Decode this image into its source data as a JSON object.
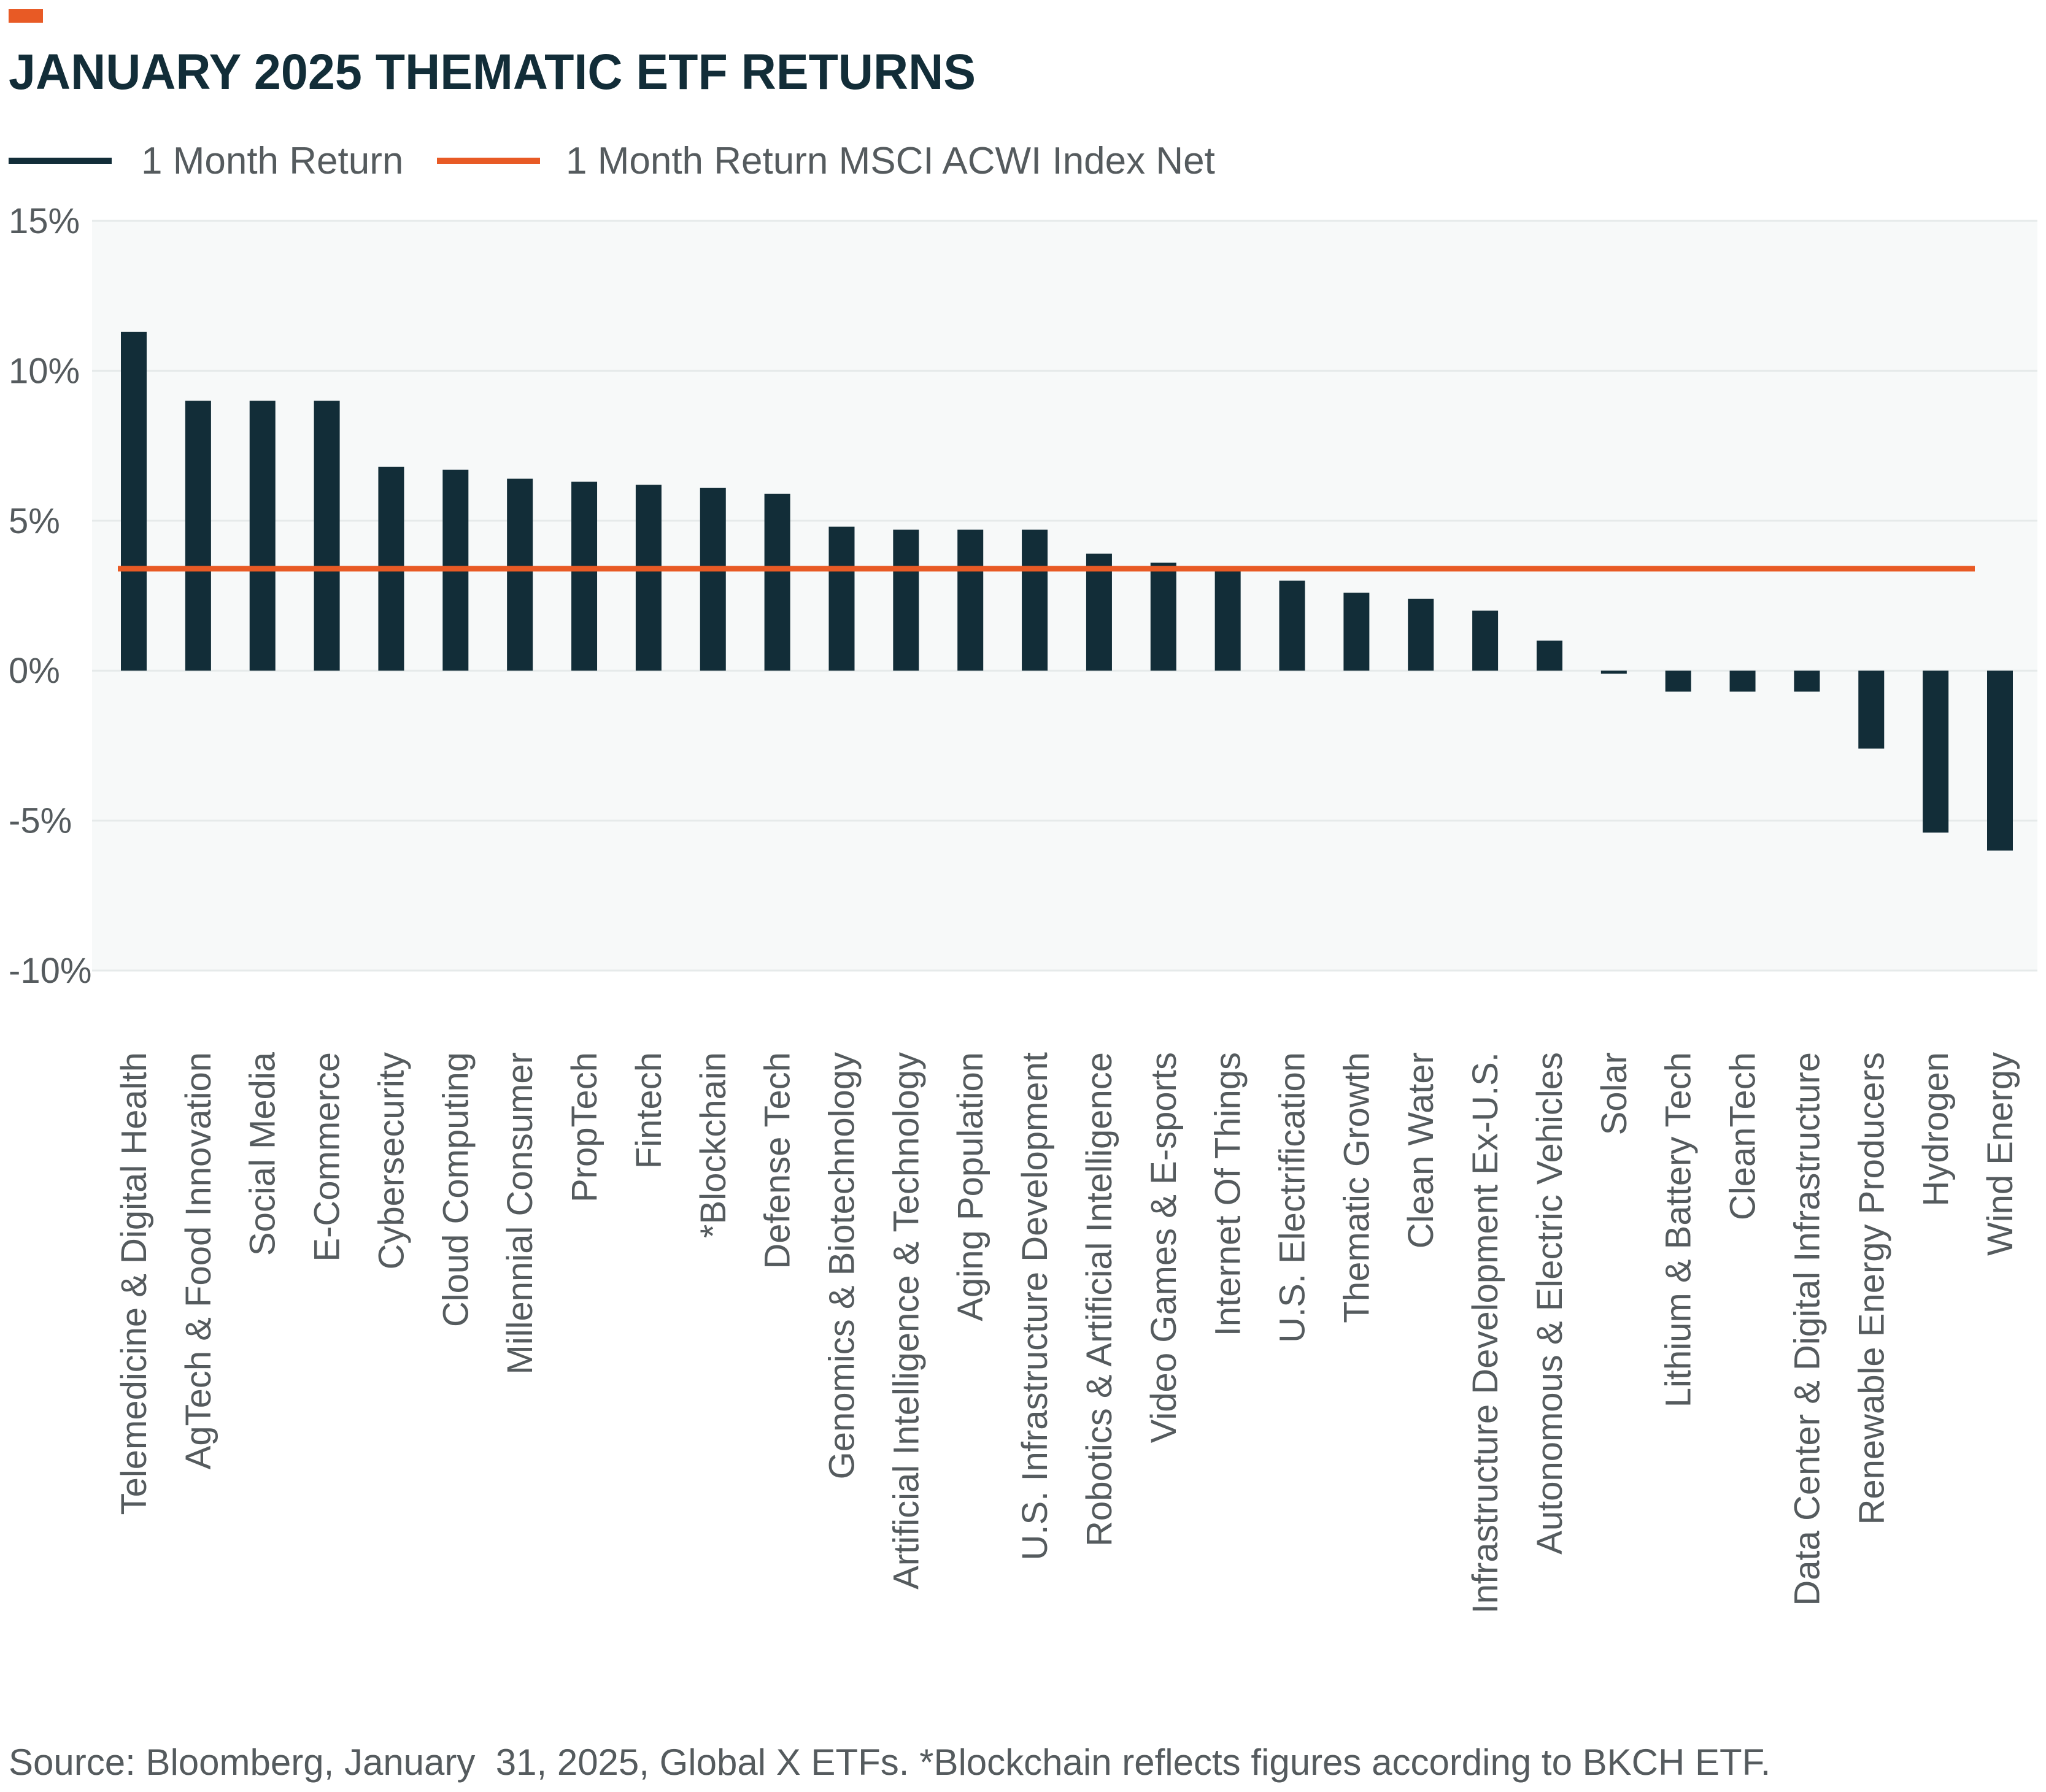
{
  "colors": {
    "accent": "#E85A25",
    "bar": "#122D38",
    "benchmark": "#E85A25",
    "title": "#122D38",
    "text": "#555B5E",
    "plot_background": "#F7F9F9",
    "gridline": "#E6EAEA"
  },
  "chart_data": {
    "type": "bar",
    "title": "JANUARY 2025 THEMATIC ETF RETURNS",
    "xlabel": "",
    "ylabel": "",
    "ylim": [
      -10,
      15
    ],
    "yticks": [
      15,
      10,
      5,
      0,
      -5,
      -10
    ],
    "ytick_labels": [
      "15%",
      "10%",
      "5%",
      "0%",
      "-5%",
      "-10%"
    ],
    "grid": true,
    "legend_position": "top-left",
    "legend": [
      "1 Month Return",
      "1 Month Return MSCI ACWI Index Net"
    ],
    "categories": [
      "Telemedicine & Digital Health",
      "AgTech & Food Innovation",
      "Social Media",
      "E-Commerce",
      "Cybersecurity",
      "Cloud Computing",
      "Millennial Consumer",
      "PropTech",
      "Fintech",
      "*Blockchain",
      "Defense Tech",
      "Genomics & Biotechnology",
      "Artificial Intelligence & Technology",
      "Aging Population",
      "U.S. Infrastructure Development",
      "Robotics & Artificial Intelligence",
      "Video Games & E-sports",
      "Internet Of Things",
      "U.S. Electrification",
      "Thematic Growth",
      "Clean Water",
      "Infrastructure Development Ex-U.S.",
      "Autonomous & Electric Vehicles",
      "Solar",
      "Lithium & Battery Tech",
      "CleanTech",
      "Data Center & Digital Infrastructure",
      "Renewable Energy Producers",
      "Hydrogen",
      "Wind Energy"
    ],
    "series": [
      {
        "name": "1 Month Return",
        "values": [
          11.3,
          9.0,
          9.0,
          9.0,
          6.8,
          6.7,
          6.4,
          6.3,
          6.2,
          6.1,
          5.9,
          4.8,
          4.7,
          4.7,
          4.7,
          3.9,
          3.6,
          3.4,
          3.0,
          2.6,
          2.4,
          2.0,
          1.0,
          -0.1,
          -0.7,
          -0.7,
          -0.7,
          -2.6,
          -5.4,
          -6.0
        ]
      },
      {
        "name": "1 Month Return MSCI ACWI Index Net",
        "value": 3.4
      }
    ]
  },
  "footnote": "Source: Bloomberg, January  31, 2025, Global X ETFs. *Blockchain reflects figures according to BKCH ETF."
}
